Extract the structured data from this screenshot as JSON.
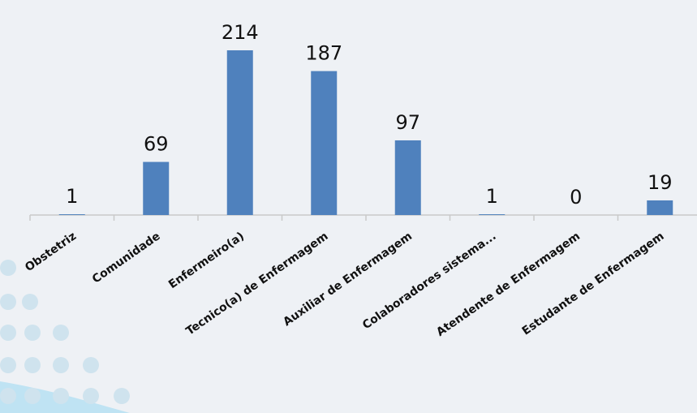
{
  "chart_data": {
    "type": "bar",
    "categories": [
      "Obstetriz",
      "Comunidade",
      "Enfermeiro(a)",
      "Tecnico(a) de Enfermagem",
      "Auxiliar de Enfermagem",
      "Colaboradores sistema...",
      "Atendente de Enfermagem",
      "Estudante de Enfermagem"
    ],
    "values": [
      1,
      69,
      214,
      187,
      97,
      1,
      0,
      19
    ],
    "value_labels": [
      "1",
      "69",
      "214",
      "187",
      "97",
      "1",
      "0",
      "19"
    ],
    "title": "",
    "xlabel": "",
    "ylabel": "",
    "ylim": [
      0,
      214
    ],
    "grid": false,
    "legend": "none",
    "colors": {
      "bar": "#4f81bd",
      "axis": "#c9c9c9",
      "text": "#111111",
      "background": "#eef1f5",
      "decor_dots": "#cfe3ee",
      "decor_swoosh": "#bfe3f3"
    }
  }
}
